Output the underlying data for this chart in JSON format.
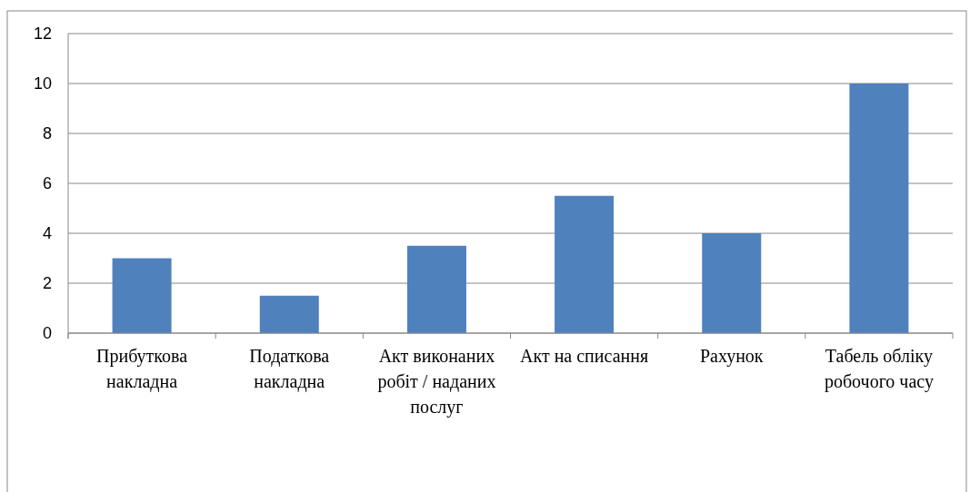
{
  "chart_data": {
    "type": "bar",
    "categories": [
      "Прибуткова накладна",
      "Податкова накладна",
      "Акт виконаних робіт / наданих послуг",
      "Акт на списання",
      "Рахунок",
      "Табель обліку робочого часу"
    ],
    "values": [
      3,
      1.5,
      3.5,
      5.5,
      4,
      10
    ],
    "color": "#4f81bd",
    "ylim": [
      0,
      12
    ],
    "yticks": [
      0,
      2,
      4,
      6,
      8,
      10,
      12
    ],
    "grid": "y"
  }
}
